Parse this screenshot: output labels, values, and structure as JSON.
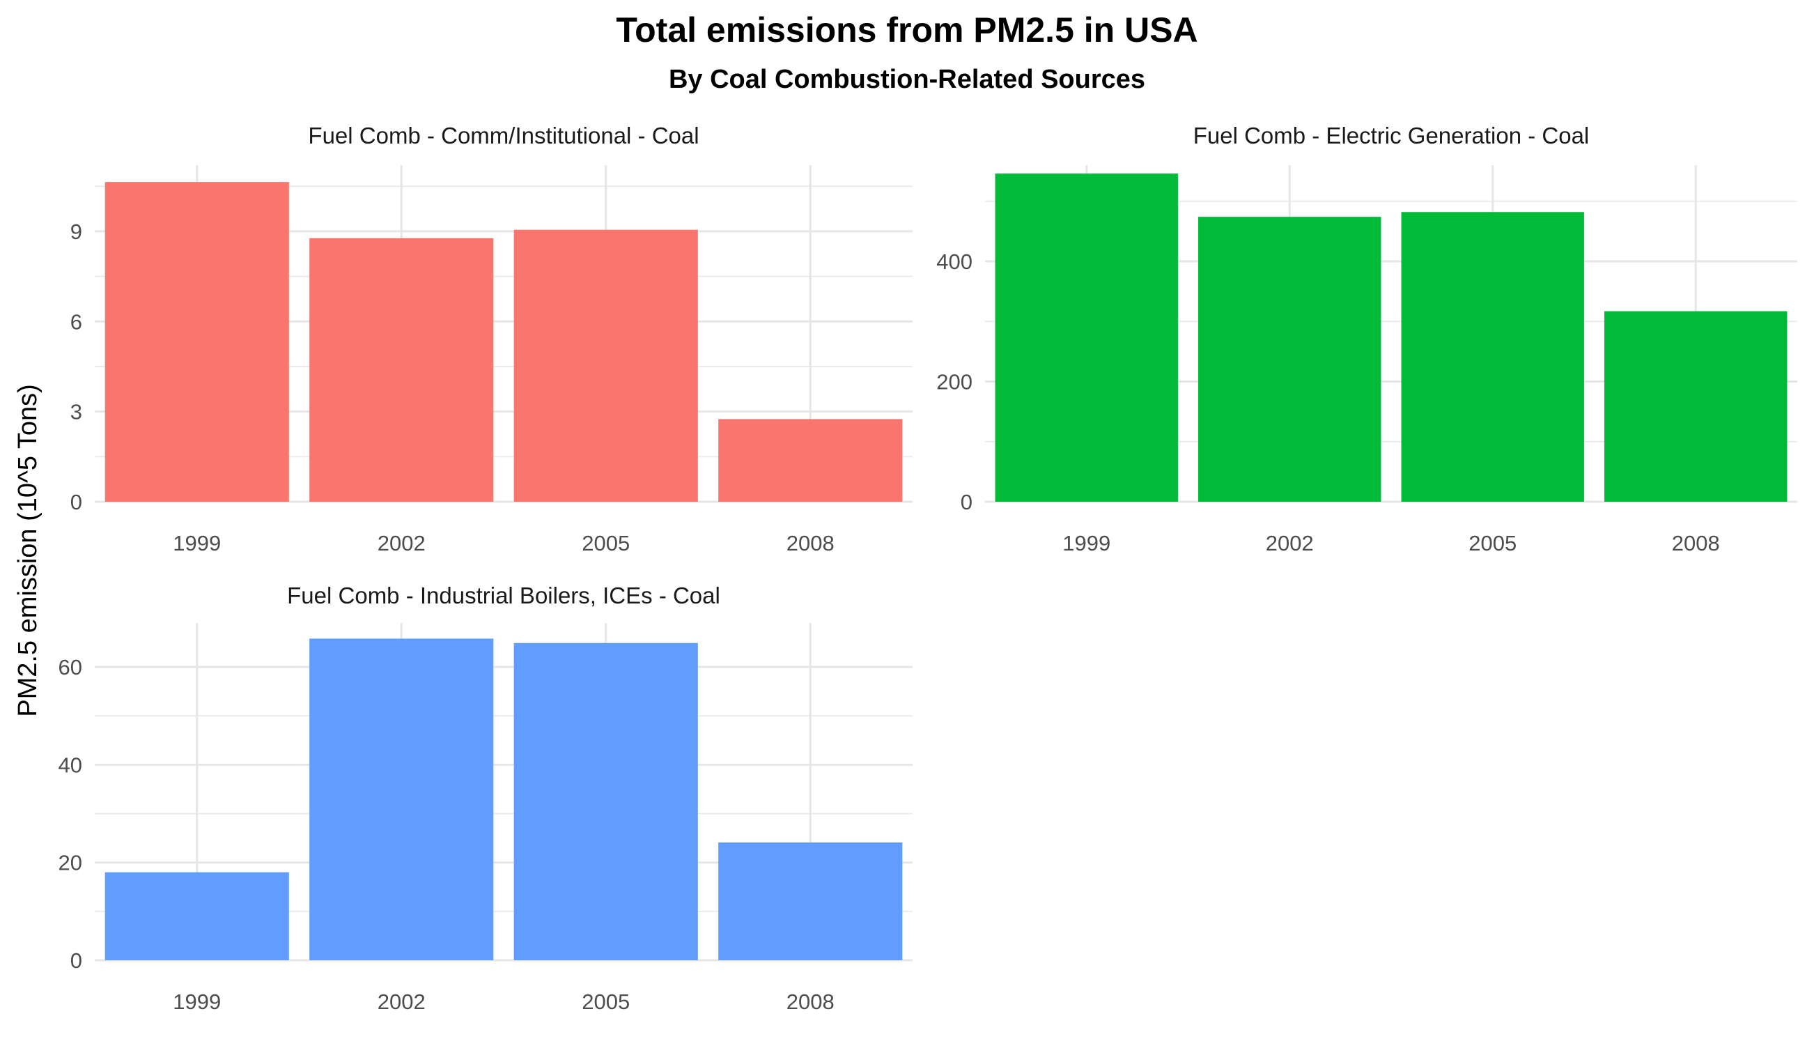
{
  "chart_data": {
    "type": "bar",
    "title": "Total emissions from PM2.5 in USA",
    "subtitle": "By Coal Combustion-Related Sources",
    "ylabel": "PM2.5 emission (10^5 Tons)",
    "xlabel": "",
    "categories": [
      "1999",
      "2002",
      "2005",
      "2008"
    ],
    "grid": true,
    "panels": [
      {
        "name": "Fuel Comb - Comm/Institutional - Coal",
        "color": "#F8766D",
        "values": [
          10.64,
          8.77,
          9.05,
          2.75
        ],
        "ylim": [
          0,
          11.2
        ],
        "yticks": [
          0,
          3,
          6,
          9
        ]
      },
      {
        "name": "Fuel Comb - Electric Generation - Coal",
        "color": "#00BA38",
        "values": [
          546,
          474,
          482,
          317
        ],
        "ylim": [
          0,
          560
        ],
        "yticks": [
          0,
          200,
          400
        ]
      },
      {
        "name": "Fuel Comb - Industrial Boilers, ICEs - Coal",
        "color": "#619CFF",
        "values": [
          18,
          65.8,
          64.9,
          24.1
        ],
        "ylim": [
          0,
          69
        ],
        "yticks": [
          0,
          20,
          40,
          60
        ]
      }
    ]
  }
}
